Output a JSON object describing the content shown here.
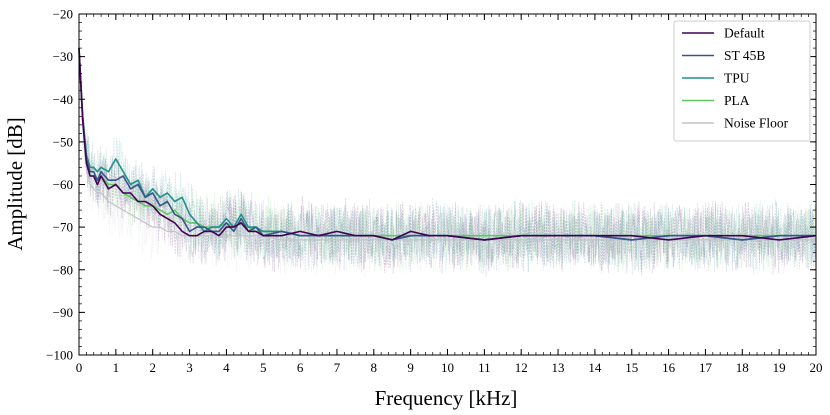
{
  "chart_data": {
    "type": "line",
    "xlabel": "Frequency [kHz]",
    "ylabel": "Amplitude [dB]",
    "xlim": [
      0,
      20
    ],
    "ylim": [
      -100,
      -20
    ],
    "xticks": [
      "0",
      "1",
      "2",
      "3",
      "4",
      "5",
      "6",
      "7",
      "8",
      "9",
      "10",
      "11",
      "12",
      "13",
      "14",
      "15",
      "16",
      "17",
      "18",
      "19",
      "20"
    ],
    "yticks": [
      "−20",
      "−30",
      "−40",
      "−50",
      "−60",
      "−70",
      "−80",
      "−90",
      "−100"
    ],
    "grid": false,
    "legend_position": "top-right",
    "x": [
      0,
      0.1,
      0.2,
      0.3,
      0.4,
      0.5,
      0.6,
      0.8,
      1.0,
      1.2,
      1.4,
      1.6,
      1.8,
      2.0,
      2.2,
      2.4,
      2.6,
      2.8,
      3.0,
      3.2,
      3.4,
      3.6,
      3.8,
      4.0,
      4.2,
      4.4,
      4.6,
      4.8,
      5.0,
      5.5,
      6.0,
      6.5,
      7.0,
      7.5,
      8.0,
      8.5,
      9.0,
      9.5,
      10,
      11,
      12,
      13,
      14,
      15,
      16,
      17,
      18,
      19,
      20
    ],
    "series": [
      {
        "name": "Default",
        "color": "#440154",
        "values": [
          -28,
          -45,
          -55,
          -58,
          -58,
          -60,
          -58,
          -61,
          -60,
          -62,
          -62,
          -64,
          -64,
          -65,
          -67,
          -68,
          -69,
          -71,
          -72,
          -72,
          -71,
          -71,
          -72,
          -70,
          -70,
          -69,
          -71,
          -71,
          -72,
          -72,
          -71,
          -72,
          -71,
          -72,
          -72,
          -73,
          -71,
          -72,
          -72,
          -73,
          -72,
          -72,
          -72,
          -72,
          -73,
          -72,
          -72,
          -73,
          -72
        ]
      },
      {
        "name": "ST 45B",
        "color": "#3b528b",
        "values": [
          -28,
          -44,
          -54,
          -57,
          -57,
          -59,
          -57,
          -59,
          -59,
          -58,
          -61,
          -60,
          -63,
          -62,
          -65,
          -64,
          -67,
          -68,
          -71,
          -70,
          -70,
          -71,
          -71,
          -69,
          -71,
          -68,
          -71,
          -70,
          -72,
          -71,
          -72,
          -72,
          -72,
          -72,
          -72,
          -73,
          -72,
          -72,
          -72,
          -73,
          -72,
          -72,
          -72,
          -73,
          -72,
          -72,
          -73,
          -72,
          -72
        ]
      },
      {
        "name": "TPU",
        "color": "#21918c",
        "values": [
          -29,
          -44,
          -53,
          -56,
          -56,
          -57,
          -56,
          -57,
          -54,
          -57,
          -60,
          -59,
          -63,
          -61,
          -63,
          -62,
          -64,
          -63,
          -67,
          -69,
          -71,
          -70,
          -70,
          -68,
          -70,
          -67,
          -70,
          -70,
          -71,
          -71,
          -72,
          -72,
          -72,
          -72,
          -72,
          -73,
          -72,
          -72,
          -72,
          -73,
          -72,
          -72,
          -72,
          -73,
          -72,
          -72,
          -73,
          -72,
          -72
        ]
      },
      {
        "name": "PLA",
        "color": "#5ec962",
        "values": [
          -28,
          -45,
          -54,
          -58,
          -58,
          -59,
          -58,
          -60,
          -60,
          -62,
          -63,
          -64,
          -65,
          -65,
          -66,
          -67,
          -66,
          -68,
          -69,
          -69,
          -70,
          -70,
          -70,
          -69,
          -70,
          -69,
          -70,
          -71,
          -71,
          -71,
          -72,
          -72,
          -72,
          -72,
          -72,
          -72,
          -72,
          -72,
          -72,
          -72,
          -72,
          -72,
          -72,
          -72,
          -72,
          -72,
          -72,
          -72,
          -72
        ]
      },
      {
        "name": "Noise Floor",
        "color": "#c2c2cc",
        "values": [
          -30,
          -46,
          -56,
          -60,
          -61,
          -62,
          -62,
          -64,
          -65,
          -66,
          -67,
          -68,
          -69,
          -70,
          -70,
          -71,
          -71,
          -72,
          -72,
          -72,
          -72,
          -72,
          -72,
          -72,
          -72,
          -72,
          -72,
          -72,
          -72,
          -73,
          -73,
          -73,
          -73,
          -73,
          -73,
          -73,
          -73,
          -73,
          -73,
          -73,
          -73,
          -73,
          -73,
          -73,
          -73,
          -73,
          -73,
          -73,
          -73
        ]
      }
    ]
  }
}
